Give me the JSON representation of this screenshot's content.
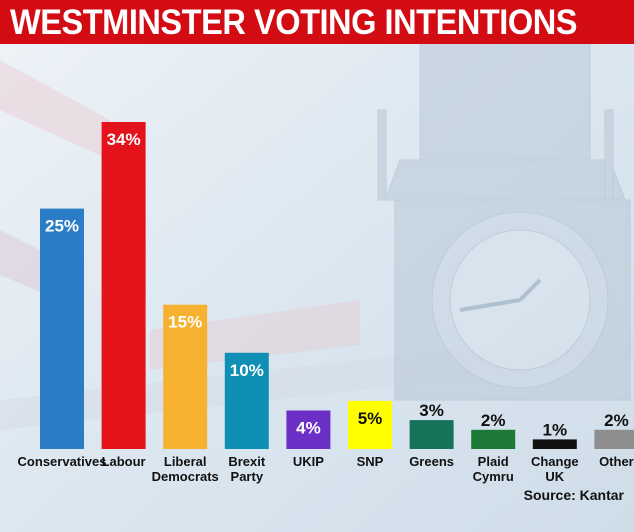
{
  "title": "WESTMINSTER VOTING INTENTIONS",
  "source": "Source: Kantar",
  "colors": {
    "title_bg": "#d30c14",
    "background": "#dfe9f1"
  },
  "chart_data": {
    "type": "bar",
    "title": "WESTMINSTER VOTING INTENTIONS",
    "categories": [
      [
        "Conservatives"
      ],
      [
        "Labour"
      ],
      [
        "Liberal",
        "Democrats"
      ],
      [
        "Brexit",
        "Party"
      ],
      [
        "UKIP"
      ],
      [
        "SNP"
      ],
      [
        "Greens"
      ],
      [
        "Plaid",
        "Cymru"
      ],
      [
        "Change",
        "UK"
      ],
      [
        "Other"
      ]
    ],
    "values": [
      25,
      34,
      15,
      10,
      4,
      5,
      3,
      2,
      1,
      2
    ],
    "labels": [
      "25%",
      "34%",
      "15%",
      "10%",
      "4%",
      "5%",
      "3%",
      "2%",
      "1%",
      "2%"
    ],
    "colors": [
      "#2b7cc6",
      "#e3121b",
      "#f7b130",
      "#0f8fb5",
      "#6b2fc5",
      "#ffff00",
      "#16735a",
      "#1c7a36",
      "#111111",
      "#8e8e8e"
    ],
    "label_colors": [
      "#ffffff",
      "#ffffff",
      "#ffffff",
      "#ffffff",
      "#ffffff",
      "#111111",
      "#111111",
      "#111111",
      "#111111",
      "#111111"
    ],
    "label_inside": [
      true,
      true,
      true,
      true,
      true,
      true,
      false,
      false,
      false,
      false
    ],
    "unit": "%",
    "xlabel": "",
    "ylabel": "",
    "ylim": [
      0,
      34
    ],
    "grid": false,
    "legend": "none"
  }
}
